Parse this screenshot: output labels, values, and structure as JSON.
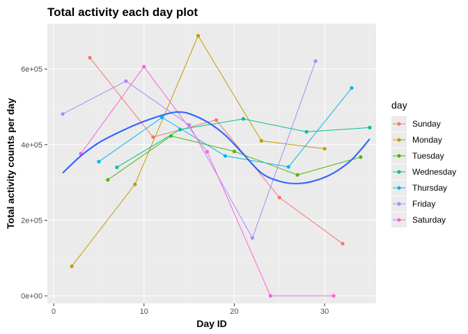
{
  "chart_data": {
    "type": "line",
    "title": "Total activity each day plot",
    "xlabel": "Day ID",
    "ylabel": "Total activity counts per day",
    "xlim": [
      -0.7,
      35.7
    ],
    "ylim": [
      -20000,
      720000
    ],
    "x_ticks": [
      0,
      10,
      20,
      30
    ],
    "x_tick_labels": [
      "0",
      "10",
      "20",
      "30"
    ],
    "x_minor_ticks": [
      5,
      15,
      25,
      35
    ],
    "y_ticks": [
      0,
      200000,
      400000,
      600000
    ],
    "y_tick_labels": [
      "0e+00",
      "2e+05",
      "4e+05",
      "6e+05"
    ],
    "y_minor_ticks": [
      100000,
      300000,
      500000,
      700000
    ],
    "grid": true,
    "legend": {
      "title": "day",
      "position": "right"
    },
    "series": [
      {
        "name": "Sunday",
        "color": "#F8766D",
        "points": [
          [
            4,
            630000
          ],
          [
            11,
            420000
          ],
          [
            18,
            465000
          ],
          [
            25,
            260000
          ],
          [
            32,
            138000
          ]
        ]
      },
      {
        "name": "Monday",
        "color": "#C49A00",
        "points": [
          [
            2,
            78000
          ],
          [
            9,
            295000
          ],
          [
            16,
            688000
          ],
          [
            23,
            410000
          ],
          [
            30,
            389000
          ]
        ]
      },
      {
        "name": "Tuesday",
        "color": "#53B400",
        "points": [
          [
            6,
            307000
          ],
          [
            13,
            423000
          ],
          [
            20,
            382000
          ],
          [
            27,
            320000
          ],
          [
            34,
            367000
          ]
        ]
      },
      {
        "name": "Wednesday",
        "color": "#00C094",
        "points": [
          [
            7,
            340000
          ],
          [
            14,
            440000
          ],
          [
            21,
            468000
          ],
          [
            28,
            434000
          ],
          [
            35,
            445000
          ]
        ]
      },
      {
        "name": "Thursday",
        "color": "#00B6EB",
        "points": [
          [
            5,
            355000
          ],
          [
            12,
            472000
          ],
          [
            19,
            370000
          ],
          [
            26,
            341000
          ],
          [
            33,
            550000
          ]
        ]
      },
      {
        "name": "Friday",
        "color": "#A58AFF",
        "points": [
          [
            1,
            481000
          ],
          [
            8,
            568000
          ],
          [
            15,
            452000
          ],
          [
            22,
            153000
          ],
          [
            29,
            621000
          ]
        ]
      },
      {
        "name": "Saturday",
        "color": "#FB61D7",
        "points": [
          [
            3,
            376000
          ],
          [
            10,
            606000
          ],
          [
            17,
            381000
          ],
          [
            24,
            0
          ],
          [
            31,
            0
          ]
        ]
      }
    ],
    "smooth": {
      "color": "#3366FF",
      "points": [
        [
          1,
          325000
        ],
        [
          3,
          370000
        ],
        [
          5,
          405000
        ],
        [
          7,
          430000
        ],
        [
          9,
          452000
        ],
        [
          11,
          470000
        ],
        [
          13,
          484000
        ],
        [
          14,
          486000
        ],
        [
          15,
          482000
        ],
        [
          17,
          460000
        ],
        [
          19,
          425000
        ],
        [
          21,
          375000
        ],
        [
          23,
          325000
        ],
        [
          25,
          303000
        ],
        [
          27,
          297000
        ],
        [
          29,
          305000
        ],
        [
          31,
          325000
        ],
        [
          33,
          360000
        ],
        [
          35,
          415000
        ]
      ]
    }
  }
}
